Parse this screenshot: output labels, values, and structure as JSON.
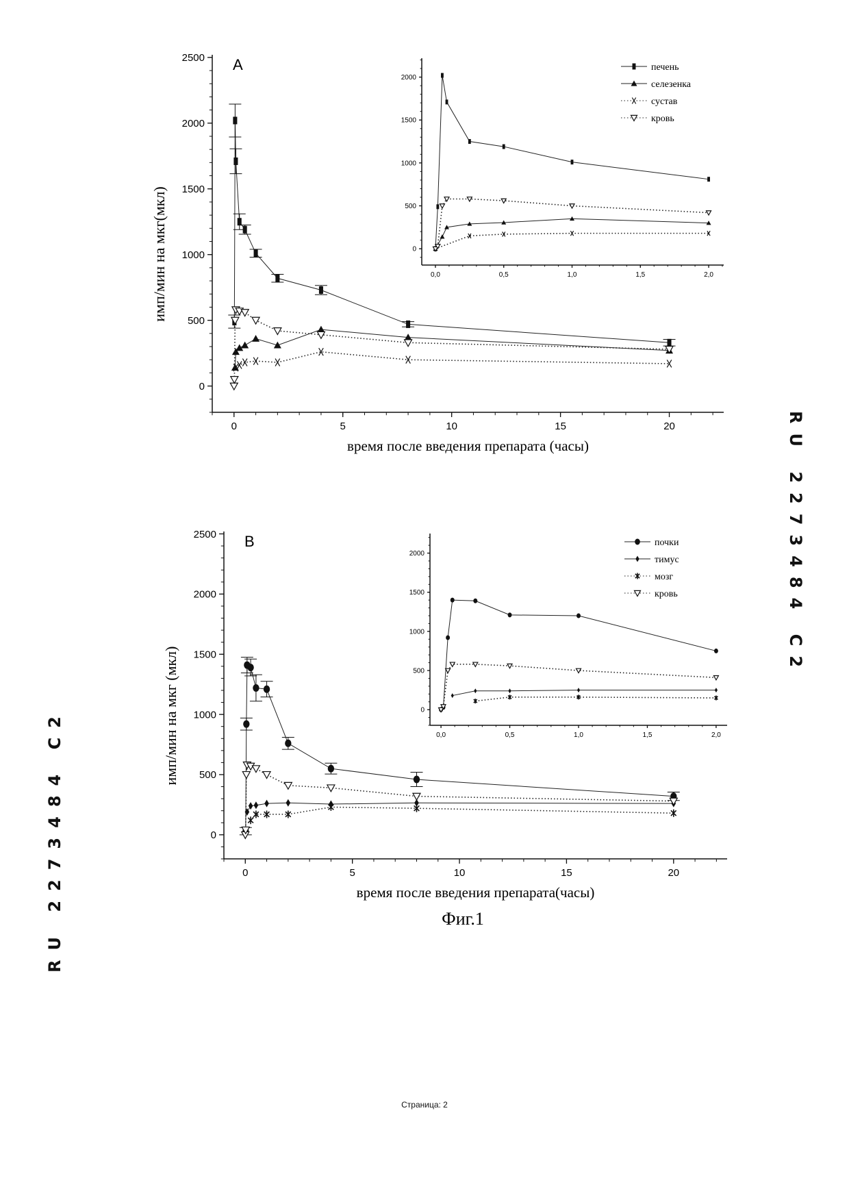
{
  "side_text": "RU 2273484 C2",
  "footer": "Страница: 2",
  "figure_caption": "Фиг.1",
  "chart_data": [
    {
      "id": "A-main",
      "type": "line",
      "panel_label": "A",
      "xlabel": "время после введения препарата (часы)",
      "ylabel": "имп/мин на мкг(мкл)",
      "xlim": [
        -1,
        22.5
      ],
      "ylim": [
        -200,
        2520
      ],
      "xticks": [
        0,
        5,
        10,
        15,
        20
      ],
      "xtick_labels": [
        "0",
        "5",
        "10",
        "15",
        "20"
      ],
      "yticks": [
        0,
        500,
        1000,
        1500,
        2000,
        2500
      ],
      "ytick_labels": [
        "0",
        "500",
        "1000",
        "1500",
        "2000",
        "2500"
      ],
      "grid": false,
      "series": [
        {
          "name": "печень",
          "marker": "square",
          "line": "solid",
          "x": [
            0.017,
            0.05,
            0.083,
            0.25,
            0.5,
            1,
            2,
            4,
            8,
            20
          ],
          "y": [
            490,
            2020,
            1710,
            1250,
            1190,
            1010,
            820,
            730,
            470,
            330
          ],
          "err": [
            50,
            125,
            95,
            60,
            35,
            30,
            30,
            35,
            20,
            25
          ]
        },
        {
          "name": "селезенка",
          "marker": "triangle",
          "line": "solid",
          "x": [
            0.05,
            0.083,
            0.25,
            0.5,
            1,
            2,
            4,
            8,
            20
          ],
          "y": [
            140,
            260,
            290,
            310,
            360,
            310,
            430,
            370,
            270
          ]
        },
        {
          "name": "сустав",
          "marker": "x",
          "line": "dotted",
          "x": [
            0.083,
            0.25,
            0.5,
            1,
            2,
            4,
            8,
            20
          ],
          "y": [
            140,
            160,
            180,
            190,
            180,
            260,
            200,
            170
          ]
        },
        {
          "name": "кровь",
          "marker": "triangle-down",
          "line": "dotted",
          "x": [
            0,
            0.017,
            0.05,
            0.083,
            0.25,
            0.5,
            1,
            2,
            4,
            8,
            20
          ],
          "y": [
            0,
            50,
            500,
            580,
            570,
            560,
            500,
            420,
            390,
            330,
            280
          ]
        }
      ]
    },
    {
      "id": "A-inset",
      "type": "line",
      "xlim": [
        -0.1,
        2.11
      ],
      "ylim": [
        -190,
        2220
      ],
      "xticks": [
        0,
        0.5,
        1,
        1.5,
        2
      ],
      "xtick_labels": [
        "0,0",
        "0,5",
        "1,0",
        "1,5",
        "2,0"
      ],
      "yticks": [
        0,
        500,
        1000,
        1500,
        2000
      ],
      "ytick_labels": [
        "0",
        "500",
        "1000",
        "1500",
        "2000"
      ],
      "legend": "top-right",
      "series": [
        {
          "name": "печень",
          "marker": "square",
          "line": "solid",
          "x": [
            0,
            0.017,
            0.05,
            0.083,
            0.25,
            0.5,
            1,
            2
          ],
          "y": [
            0,
            490,
            2020,
            1710,
            1250,
            1190,
            1010,
            810
          ]
        },
        {
          "name": "селезенка",
          "marker": "triangle",
          "line": "solid",
          "x": [
            0,
            0.05,
            0.083,
            0.25,
            0.5,
            1,
            2
          ],
          "y": [
            0,
            140,
            250,
            290,
            305,
            350,
            300
          ]
        },
        {
          "name": "сустав",
          "marker": "x",
          "line": "dotted",
          "x": [
            0,
            0.25,
            0.5,
            1,
            2
          ],
          "y": [
            0,
            150,
            170,
            180,
            180
          ]
        },
        {
          "name": "кровь",
          "marker": "triangle-down",
          "line": "dotted",
          "x": [
            0,
            0.017,
            0.05,
            0.083,
            0.25,
            0.5,
            1,
            2
          ],
          "y": [
            0,
            30,
            500,
            580,
            580,
            560,
            500,
            420
          ]
        }
      ]
    },
    {
      "id": "B-main",
      "type": "line",
      "panel_label": "B",
      "xlabel": "время после введения препарата(часы)",
      "ylabel": "имп/мин на мкг (мкл)",
      "xlim": [
        -1,
        22.5
      ],
      "ylim": [
        -200,
        2520
      ],
      "xticks": [
        0,
        5,
        10,
        15,
        20
      ],
      "xtick_labels": [
        "0",
        "5",
        "10",
        "15",
        "20"
      ],
      "yticks": [
        0,
        500,
        1000,
        1500,
        2000,
        2500
      ],
      "ytick_labels": [
        "0",
        "500",
        "1000",
        "1500",
        "2000",
        "2500"
      ],
      "grid": false,
      "series": [
        {
          "name": "почки",
          "marker": "circle",
          "line": "solid",
          "x": [
            0.017,
            0.05,
            0.083,
            0.25,
            0.5,
            1,
            2,
            4,
            8,
            20
          ],
          "y": [
            30,
            920,
            1410,
            1390,
            1220,
            1210,
            760,
            550,
            460,
            320
          ],
          "err": [
            30,
            50,
            65,
            70,
            110,
            65,
            50,
            45,
            60,
            35
          ]
        },
        {
          "name": "тимус",
          "marker": "diamond",
          "line": "solid",
          "x": [
            0.083,
            0.25,
            0.5,
            1,
            2,
            4,
            8,
            20
          ],
          "y": [
            190,
            240,
            245,
            260,
            265,
            255,
            265,
            260
          ]
        },
        {
          "name": "мозг",
          "marker": "asterisk",
          "line": "dotted",
          "x": [
            0.25,
            0.5,
            1,
            2,
            4,
            8,
            20
          ],
          "y": [
            120,
            170,
            170,
            170,
            230,
            220,
            180
          ]
        },
        {
          "name": "кровь",
          "marker": "triangle-down",
          "line": "dotted",
          "x": [
            0,
            0.017,
            0.05,
            0.083,
            0.25,
            0.5,
            1,
            2,
            4,
            8,
            20
          ],
          "y": [
            0,
            40,
            500,
            580,
            570,
            550,
            500,
            410,
            390,
            320,
            280
          ]
        }
      ]
    },
    {
      "id": "B-inset",
      "type": "line",
      "xlim": [
        -0.08,
        2.08
      ],
      "ylim": [
        -200,
        2250
      ],
      "xticks": [
        0,
        0.5,
        1,
        1.5,
        2
      ],
      "xtick_labels": [
        "0,0",
        "0,5",
        "1,0",
        "1,5",
        "2,0"
      ],
      "yticks": [
        0,
        500,
        1000,
        1500,
        2000
      ],
      "ytick_labels": [
        "0",
        "500",
        "1000",
        "1500",
        "2000"
      ],
      "legend": "top-right",
      "series": [
        {
          "name": "почки",
          "marker": "circle",
          "line": "solid",
          "x": [
            0,
            0.017,
            0.05,
            0.083,
            0.25,
            0.5,
            1,
            2
          ],
          "y": [
            0,
            30,
            920,
            1400,
            1390,
            1210,
            1200,
            750
          ]
        },
        {
          "name": "тимус",
          "marker": "diamond",
          "line": "solid",
          "x": [
            0.083,
            0.25,
            0.5,
            1,
            2
          ],
          "y": [
            180,
            240,
            240,
            250,
            250
          ]
        },
        {
          "name": "мозг",
          "marker": "asterisk",
          "line": "dotted",
          "x": [
            0.25,
            0.5,
            1,
            2
          ],
          "y": [
            110,
            160,
            160,
            150
          ]
        },
        {
          "name": "кровь",
          "marker": "triangle-down",
          "line": "dotted",
          "x": [
            0,
            0.017,
            0.05,
            0.083,
            0.25,
            0.5,
            1,
            2
          ],
          "y": [
            0,
            40,
            500,
            580,
            580,
            560,
            500,
            410
          ]
        }
      ]
    }
  ]
}
